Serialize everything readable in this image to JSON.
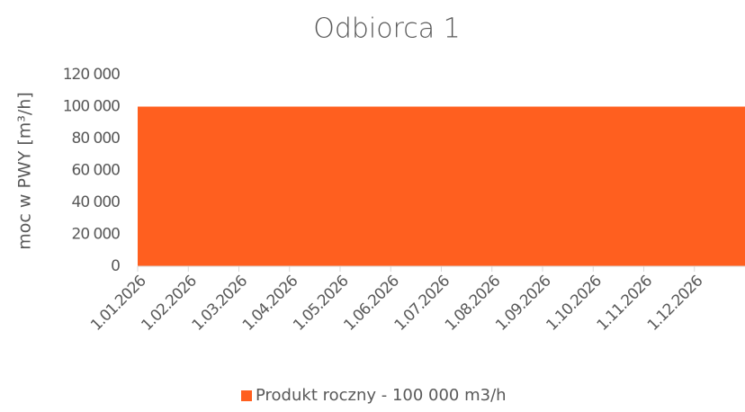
{
  "chart_data": {
    "type": "area",
    "title": "Odbiorca 1",
    "y_label": "moc w PWY [m³/h]",
    "categories": [
      "1.01.2026",
      "1.02.2026",
      "1.03.2026",
      "1.04.2026",
      "1.05.2026",
      "1.06.2026",
      "1.07.2026",
      "1.08.2026",
      "1.09.2026",
      "1.10.2026",
      "1.11.2026",
      "1.12.2026"
    ],
    "series": [
      {
        "name": "Produkt roczny - 100 000 m3/h",
        "color": "#ff5f1f",
        "values": [
          100000,
          100000,
          100000,
          100000,
          100000,
          100000,
          100000,
          100000,
          100000,
          100000,
          100000,
          100000
        ]
      }
    ],
    "ylim": [
      0,
      120000
    ],
    "yticks": [
      0,
      {
        "value": 20000,
        "label": "20 000"
      },
      {
        "value": 40000,
        "label": "40 000"
      },
      {
        "value": 60000,
        "label": "60 000"
      },
      {
        "value": 80000,
        "label": "80 000"
      },
      {
        "value": 100000,
        "label": "100 000"
      },
      {
        "value": 120000,
        "label": "120 000"
      }
    ],
    "grid": false,
    "legend": "bottom"
  }
}
